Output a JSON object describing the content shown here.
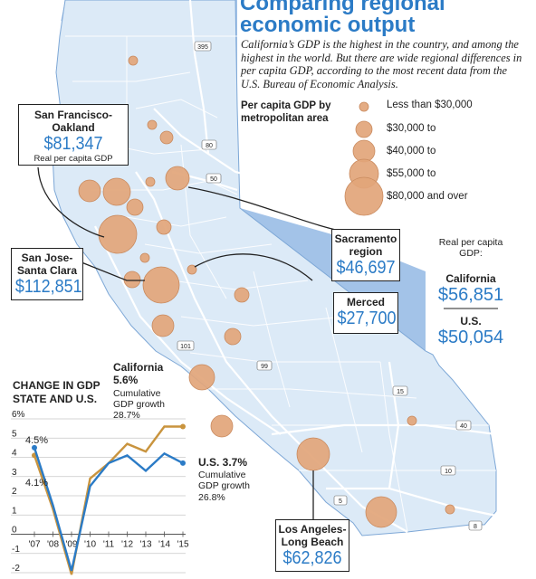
{
  "header": {
    "title_line1": "Comparing regional",
    "title_line2": "economic output",
    "intro": "California’s GDP is the highest in the country, and among the highest in the world. But there are wide regional differences in per capita GDP, according to the most recent data from the U.S. Bureau of Economic Analysis."
  },
  "legend": {
    "title": "Per capita GDP by metropolitan area",
    "items": [
      {
        "label": "Less than $30,000",
        "size_rank": 1
      },
      {
        "label": "$30,000 to",
        "size_rank": 2
      },
      {
        "label": "$40,000 to",
        "size_rank": 3
      },
      {
        "label": "$55,000 to",
        "size_rank": 4
      },
      {
        "label": "$80,000 and over",
        "size_rank": 5
      }
    ]
  },
  "callouts": {
    "sf": {
      "name_line1": "San Francisco-",
      "name_line2": "Oakland",
      "value": "$81,347",
      "note": "Real per capita GDP"
    },
    "sj": {
      "name_line1": "San Jose-",
      "name_line2": "Santa Clara",
      "value": "$112,851"
    },
    "sac": {
      "name_line1": "Sacramento",
      "name_line2": "region",
      "value": "$46,697"
    },
    "merced": {
      "name_line1": "Merced",
      "value": "$27,700"
    },
    "la": {
      "name_line1": "Los Angeles-",
      "name_line2": "Long Beach",
      "value": "$62,826"
    }
  },
  "sidebar": {
    "heading": "Real per capita GDP:",
    "ca_label": "California",
    "ca_value": "$56,851",
    "us_label": "U.S.",
    "us_value": "$50,054"
  },
  "highways": [
    "395",
    "80",
    "50",
    "101",
    "99",
    "15",
    "40",
    "10",
    "5",
    "8"
  ],
  "colors": {
    "land": "#dceaf7",
    "outside": "#a3c3e8",
    "bubble": "#e2a579",
    "accent": "#2b7bc6",
    "highway": "#ffffff"
  },
  "chart": {
    "title_line1": "CHANGE IN GDP",
    "title_line2": "STATE AND U.S.",
    "ca_label": "California",
    "ca_value": "5.6%",
    "ca_cum_label": "Cumulative",
    "ca_cum_value": "GDP growth 28.7%",
    "us_label": "U.S. 3.7%",
    "us_cum_label": "Cumulative GDP growth",
    "us_cum_value": "26.8%",
    "start_us": "4.5%",
    "start_ca": "4.1%"
  },
  "chart_data": {
    "type": "line",
    "x": [
      "'07",
      "'08",
      "'09",
      "'10",
      "'11",
      "'12",
      "'13",
      "'14",
      "'15"
    ],
    "y_tick_labels": [
      "6%",
      "5",
      "4",
      "3",
      "2",
      "1",
      "0",
      "-1",
      "-2"
    ],
    "ylim": [
      -2,
      6
    ],
    "series": [
      {
        "name": "California",
        "color": "#c9943e",
        "values": [
          4.1,
          1.3,
          -2.1,
          2.9,
          3.7,
          4.7,
          4.3,
          5.6,
          5.6
        ]
      },
      {
        "name": "U.S.",
        "color": "#2b7bc6",
        "values": [
          4.5,
          1.5,
          -1.9,
          2.5,
          3.7,
          4.1,
          3.3,
          4.2,
          3.7
        ]
      }
    ]
  }
}
